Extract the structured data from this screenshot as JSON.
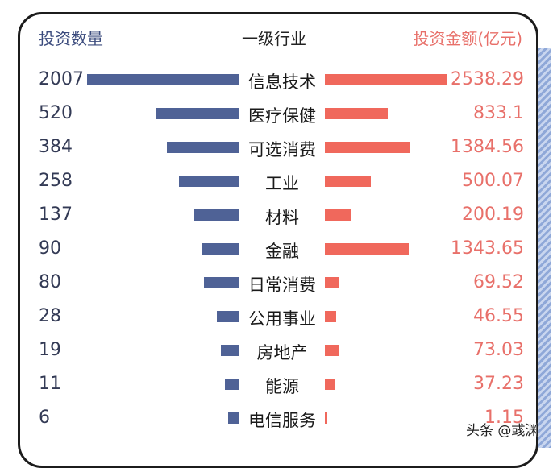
{
  "chart_data": {
    "type": "bar",
    "headers": {
      "left": "投资数量",
      "middle": "一级行业",
      "right": "投资金额(亿元)"
    },
    "categories": [
      "信息技术",
      "医疗保健",
      "可选消费",
      "工业",
      "材料",
      "金融",
      "日常消费",
      "公用事业",
      "房地产",
      "能源",
      "电信服务"
    ],
    "series": [
      {
        "name": "投资数量",
        "values": [
          2007,
          520,
          384,
          258,
          137,
          90,
          80,
          28,
          19,
          11,
          6
        ],
        "color": "#4f6296"
      },
      {
        "name": "投资金额(亿元)",
        "values": [
          "2538.29",
          "833.1",
          "1384.56",
          "500.07",
          "200.19",
          "1343.65",
          "69.52",
          "46.55",
          "73.03",
          "37.23",
          "1.15"
        ],
        "color": "#f0685c"
      }
    ]
  },
  "watermark": "头条 @彧渊"
}
